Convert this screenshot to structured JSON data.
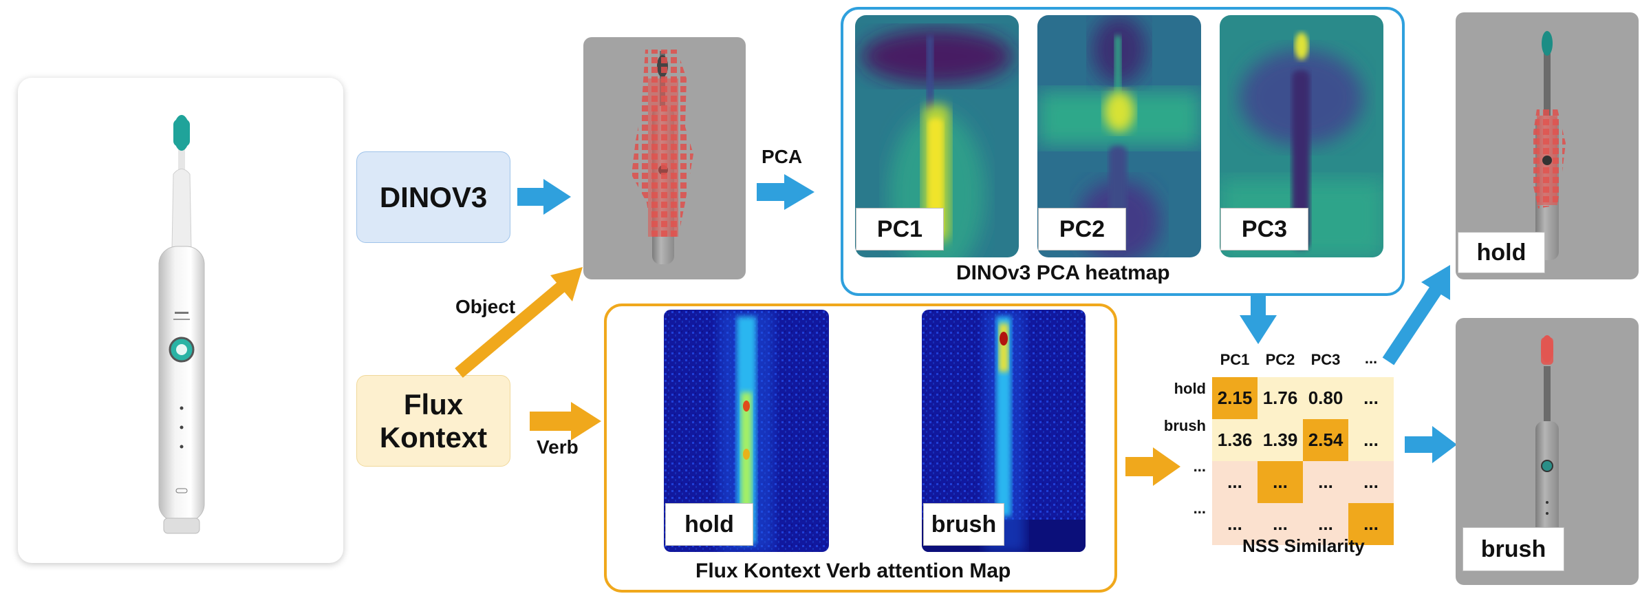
{
  "models": {
    "dinov3": "DINOV3",
    "flux": "Flux\nKontext"
  },
  "arrows": {
    "pca": "PCA",
    "object": "Object",
    "verb": "Verb"
  },
  "pca_panel": {
    "caption": "DINOv3 PCA heatmap",
    "components": [
      "PC1",
      "PC2",
      "PC3"
    ]
  },
  "attention_panel": {
    "caption": "Flux Kontext Verb attention Map",
    "verbs": [
      "hold",
      "brush"
    ]
  },
  "similarity": {
    "caption": "NSS Similarity",
    "columns": [
      "PC1",
      "PC2",
      "PC3",
      "..."
    ],
    "rows": [
      "hold",
      "brush",
      "...",
      "..."
    ],
    "values": [
      [
        "2.15",
        "1.76",
        "0.80",
        "..."
      ],
      [
        "1.36",
        "1.39",
        "2.54",
        "..."
      ],
      [
        "...",
        "...",
        "...",
        "..."
      ],
      [
        "...",
        "...",
        "...",
        "..."
      ]
    ],
    "highlight": [
      [
        1,
        0,
        0,
        0
      ],
      [
        0,
        0,
        1,
        0
      ],
      [
        0,
        1,
        0,
        0
      ],
      [
        0,
        0,
        0,
        1
      ]
    ]
  },
  "outputs": {
    "top": "hold",
    "bottom": "brush"
  },
  "colors": {
    "blue_arrow": "#2fa0dd",
    "orange_arrow": "#f0a81c",
    "highlight": "#f0a81c",
    "cell": "#fdf1c9",
    "cell_alt": "#fbe1cf"
  },
  "icons": [
    "toothbrush-image",
    "blue-arrow-icon",
    "orange-arrow-icon"
  ]
}
